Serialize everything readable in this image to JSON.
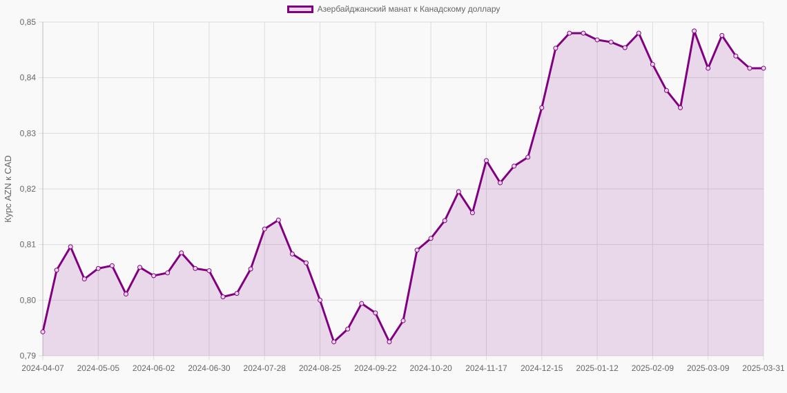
{
  "legend": {
    "label": "Азербайджанский манат к Канадскому доллару"
  },
  "colors": {
    "line": "#800080",
    "fill": "rgba(128,0,128,0.13)",
    "grid": "#dcdcdc",
    "text": "#666666"
  },
  "chart_data": {
    "type": "area",
    "title": "",
    "xlabel": "",
    "ylabel": "Курс AZN к CAD",
    "ylim": [
      0.79,
      0.85
    ],
    "yticks": [
      "0,85",
      "0,84",
      "0,83",
      "0,82",
      "0,81",
      "0,80",
      "0,79"
    ],
    "xtick_labels": [
      "2024-04-07",
      "2024-05-05",
      "2024-06-02",
      "2024-06-30",
      "2024-07-28",
      "2024-08-25",
      "2024-09-22",
      "2024-10-20",
      "2024-11-17",
      "2024-12-15",
      "2025-01-12",
      "2025-02-09",
      "2025-03-09",
      "2025-03-31"
    ],
    "grid": true,
    "legend_position": "top",
    "series": [
      {
        "name": "Азербайджанский манат к Канадскому доллару",
        "values": [
          0.7943,
          0.8054,
          0.8096,
          0.8038,
          0.8057,
          0.8062,
          0.8011,
          0.8059,
          0.8044,
          0.8049,
          0.8085,
          0.8057,
          0.8053,
          0.8006,
          0.8012,
          0.8056,
          0.8128,
          0.8144,
          0.8083,
          0.8067,
          0.8,
          0.7925,
          0.7948,
          0.7994,
          0.7977,
          0.7925,
          0.7963,
          0.809,
          0.8111,
          0.8143,
          0.8195,
          0.8157,
          0.8251,
          0.8211,
          0.8241,
          0.8257,
          0.8346,
          0.8453,
          0.848,
          0.848,
          0.8468,
          0.8464,
          0.8454,
          0.848,
          0.8424,
          0.8377,
          0.8346,
          0.8484,
          0.8417,
          0.8476,
          0.8439,
          0.8417,
          0.8417
        ]
      }
    ]
  }
}
